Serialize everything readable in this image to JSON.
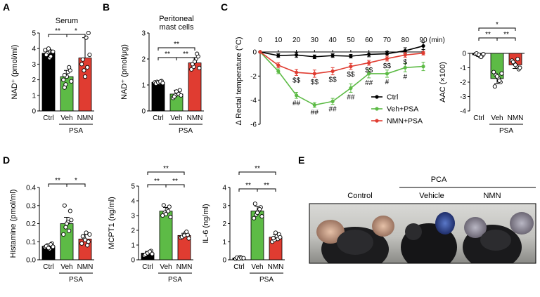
{
  "chart_data": [
    {
      "panel": "A",
      "type": "bar",
      "title": "Serum",
      "ylabel": "NAD⁺ (pmol/ml)",
      "ylim": [
        0,
        5
      ],
      "yticks": [
        0,
        1,
        2,
        3,
        4,
        5
      ],
      "categories": [
        "Ctrl",
        "Veh",
        "NMN"
      ],
      "group_label": "PSA",
      "values": [
        3.7,
        2.2,
        3.4
      ],
      "errors": [
        0.25,
        0.4,
        1.3
      ],
      "colors": [
        "#000000",
        "#5dbb46",
        "#e03c31"
      ],
      "points": [
        [
          3.9,
          3.7,
          3.4,
          3.8,
          3.6,
          4.0,
          3.5,
          3.8
        ],
        [
          2.0,
          1.7,
          2.5,
          2.6,
          1.5,
          2.2,
          2.8,
          1.9,
          2.3
        ],
        [
          3.0,
          2.6,
          4.7,
          5.0,
          3.3,
          2.2,
          2.8,
          3.6
        ]
      ],
      "significance": [
        {
          "pair": [
            "Ctrl",
            "Veh"
          ],
          "label": "**"
        },
        {
          "pair": [
            "Veh",
            "NMN"
          ],
          "label": "*"
        }
      ]
    },
    {
      "panel": "B",
      "type": "bar",
      "title": "Peritoneal mast cells",
      "title_lines": [
        "Peritoneal",
        "mast cells"
      ],
      "ylabel": "NAD⁺ (pmol/μg)",
      "ylim": [
        0,
        3
      ],
      "yticks": [
        0,
        1,
        2,
        3
      ],
      "categories": [
        "Ctrl",
        "Veh",
        "NMN"
      ],
      "group_label": "PSA",
      "values": [
        1.1,
        0.65,
        1.85
      ],
      "errors": [
        0.06,
        0.15,
        0.2
      ],
      "colors": [
        "#000000",
        "#5dbb46",
        "#e03c31"
      ],
      "points": [
        [
          1.1,
          1.12,
          1.08,
          1.15,
          1.05,
          1.1,
          1.13,
          1.07
        ],
        [
          0.5,
          0.6,
          0.7,
          0.8,
          0.55,
          0.75,
          0.65,
          0.6
        ],
        [
          1.6,
          1.7,
          2.0,
          2.1,
          1.8,
          1.9,
          2.2,
          1.65
        ]
      ],
      "significance": [
        {
          "pair": [
            "Ctrl",
            "Veh"
          ],
          "label": "**"
        },
        {
          "pair": [
            "Veh",
            "NMN"
          ],
          "label": "**"
        },
        {
          "pair": [
            "Ctrl",
            "NMN"
          ],
          "label": "**"
        }
      ]
    },
    {
      "panel": "C",
      "type": "line",
      "xlabel": "(min)",
      "ylabel": "Δ Rectal temperature (°C)",
      "xlim": [
        0,
        90
      ],
      "ylim": [
        -6,
        0
      ],
      "x": [
        0,
        10,
        20,
        30,
        40,
        50,
        60,
        70,
        80,
        90
      ],
      "xticks": [
        0,
        10,
        20,
        30,
        40,
        50,
        60,
        70,
        80,
        90
      ],
      "yticks": [
        0,
        -2,
        -4,
        -6
      ],
      "legend": "bottom-right",
      "series": [
        {
          "name": "Ctrl",
          "color": "#000000",
          "values": [
            0,
            -0.3,
            -0.25,
            -0.4,
            -0.3,
            -0.35,
            -0.2,
            -0.15,
            0.1,
            0.5
          ],
          "errors": [
            0,
            0.15,
            0.2,
            0.15,
            0.15,
            0.15,
            0.2,
            0.2,
            0.25,
            0.3
          ]
        },
        {
          "name": "Veh+PSA",
          "color": "#5dbb46",
          "values": [
            0,
            -1.6,
            -3.6,
            -4.4,
            -4.1,
            -3.0,
            -1.8,
            -1.8,
            -1.3,
            -1.2
          ],
          "errors": [
            0,
            0.2,
            0.25,
            0.2,
            0.25,
            0.35,
            0.35,
            0.3,
            0.35,
            0.35
          ]
        },
        {
          "name": "NMN+PSA",
          "color": "#e03c31",
          "values": [
            0,
            -1.1,
            -1.7,
            -1.8,
            -1.6,
            -1.2,
            -0.9,
            -0.55,
            -0.25,
            -0.1
          ],
          "errors": [
            0,
            0.2,
            0.25,
            0.3,
            0.3,
            0.25,
            0.2,
            0.2,
            0.2,
            0.15
          ]
        }
      ],
      "annotations": [
        {
          "x": 20,
          "label": "$$"
        },
        {
          "x": 30,
          "label": "$$"
        },
        {
          "x": 40,
          "label": "$$"
        },
        {
          "x": 50,
          "label": "$$"
        },
        {
          "x": 60,
          "label": "$$"
        },
        {
          "x": 70,
          "label": "$$"
        },
        {
          "x": 80,
          "label": "$"
        },
        {
          "x": 20,
          "label": "##"
        },
        {
          "x": 30,
          "label": "##"
        },
        {
          "x": 40,
          "label": "##"
        },
        {
          "x": 50,
          "label": "##"
        },
        {
          "x": 60,
          "label": "##"
        },
        {
          "x": 70,
          "label": "#"
        },
        {
          "x": 80,
          "label": "#"
        }
      ]
    },
    {
      "panel": "C-AAC",
      "type": "bar",
      "ylabel": "AAC (×100)",
      "ylim": [
        -4,
        0
      ],
      "yticks": [
        0,
        -1,
        -2,
        -3,
        -4
      ],
      "categories": [
        "Ctrl",
        "Veh",
        "NMN"
      ],
      "group_label": "PSA",
      "values": [
        -0.1,
        -1.75,
        -0.8
      ],
      "errors": [
        0.1,
        0.35,
        0.25
      ],
      "colors": [
        "#000000",
        "#5dbb46",
        "#e03c31"
      ],
      "points": [
        [
          -0.05,
          -0.1,
          -0.2,
          -0.15,
          0.0,
          -0.1,
          -0.25,
          -0.05
        ],
        [
          -1.3,
          -1.5,
          -1.7,
          -2.0,
          -2.3,
          -1.6,
          -1.9,
          -1.4
        ],
        [
          -0.5,
          -0.7,
          -0.9,
          -1.1,
          -0.6,
          -0.8,
          -0.4,
          -1.0
        ]
      ],
      "significance": [
        {
          "pair": [
            "Ctrl",
            "Veh"
          ],
          "label": "**"
        },
        {
          "pair": [
            "Veh",
            "NMN"
          ],
          "label": "**"
        },
        {
          "pair": [
            "Ctrl",
            "NMN"
          ],
          "label": "*"
        }
      ]
    },
    {
      "panel": "D",
      "type": "bar",
      "ylabel": "Histamine (pmol/ml)",
      "ylim": [
        0,
        0.4
      ],
      "yticks": [
        0,
        0.1,
        0.2,
        0.3,
        0.4
      ],
      "ytick_labels": [
        "0.0",
        "0.1",
        "0.2",
        "0.3",
        "0.4"
      ],
      "categories": [
        "Ctrl",
        "Veh",
        "NMN"
      ],
      "group_label": "PSA",
      "values": [
        0.075,
        0.2,
        0.115
      ],
      "errors": [
        0.012,
        0.035,
        0.025
      ],
      "colors": [
        "#000000",
        "#5dbb46",
        "#e03c31"
      ],
      "points": [
        [
          0.07,
          0.08,
          0.06,
          0.09,
          0.075,
          0.065,
          0.085,
          0.072
        ],
        [
          0.14,
          0.18,
          0.21,
          0.27,
          0.3,
          0.2,
          0.16,
          0.22
        ],
        [
          0.09,
          0.12,
          0.15,
          0.1,
          0.13,
          0.11,
          0.08,
          0.14
        ]
      ],
      "significance": [
        {
          "pair": [
            "Ctrl",
            "Veh"
          ],
          "label": "**"
        },
        {
          "pair": [
            "Veh",
            "NMN"
          ],
          "label": "*"
        }
      ]
    },
    {
      "panel": "D-MCPT1",
      "type": "bar",
      "ylabel": "MCPT1 (ng/ml)",
      "ylim": [
        0,
        5
      ],
      "yticks": [
        0,
        1,
        2,
        3,
        4,
        5
      ],
      "categories": [
        "Ctrl",
        "Veh",
        "NMN"
      ],
      "group_label": "PSA",
      "values": [
        0.45,
        3.3,
        1.65
      ],
      "errors": [
        0.12,
        0.25,
        0.15
      ],
      "colors": [
        "#000000",
        "#5dbb46",
        "#e03c31"
      ],
      "points": [
        [
          0.3,
          0.4,
          0.5,
          0.6,
          0.35,
          0.45,
          0.55,
          0.4
        ],
        [
          3.0,
          3.2,
          3.4,
          3.6,
          3.7,
          3.1,
          3.3,
          2.9
        ],
        [
          1.5,
          1.6,
          1.8,
          1.7,
          1.55,
          1.65,
          1.9,
          1.45
        ]
      ],
      "significance": [
        {
          "pair": [
            "Ctrl",
            "Veh"
          ],
          "label": "**"
        },
        {
          "pair": [
            "Veh",
            "NMN"
          ],
          "label": "**"
        },
        {
          "pair": [
            "Ctrl",
            "NMN"
          ],
          "label": "**"
        }
      ]
    },
    {
      "panel": "D-IL6",
      "type": "bar",
      "ylabel": "IL-6 (ng/ml)",
      "ylim": [
        0,
        4
      ],
      "yticks": [
        0,
        1,
        2,
        3,
        4
      ],
      "categories": [
        "Ctrl",
        "Veh",
        "NMN"
      ],
      "group_label": "PSA",
      "values": [
        0.1,
        2.7,
        1.25
      ],
      "errors": [
        0.05,
        0.25,
        0.15
      ],
      "colors": [
        "#000000",
        "#5dbb46",
        "#e03c31"
      ],
      "points": [
        [
          0.05,
          0.1,
          0.15,
          0.08,
          0.12,
          0.06,
          0.1,
          0.09
        ],
        [
          2.3,
          2.5,
          2.7,
          2.9,
          3.1,
          2.6,
          2.8,
          2.4
        ],
        [
          1.0,
          1.1,
          1.3,
          1.4,
          1.2,
          1.5,
          1.15,
          1.25
        ]
      ],
      "significance": [
        {
          "pair": [
            "Ctrl",
            "Veh"
          ],
          "label": "**"
        },
        {
          "pair": [
            "Veh",
            "NMN"
          ],
          "label": "**"
        },
        {
          "pair": [
            "Ctrl",
            "NMN"
          ],
          "label": "**"
        }
      ]
    }
  ],
  "photo": {
    "panel": "E",
    "group_label": "PCA",
    "labels": [
      "Control",
      "Vehicle",
      "NMN"
    ]
  }
}
